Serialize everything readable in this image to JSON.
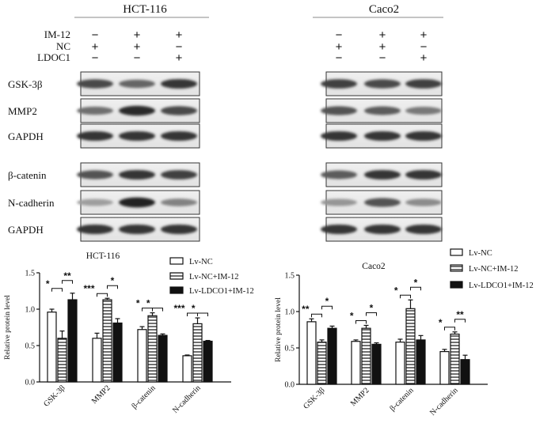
{
  "blot": {
    "panels": [
      {
        "title": "HCT-116",
        "rows": [
          {
            "label": "IM-12",
            "signs": [
              "−",
              "+",
              "+"
            ]
          },
          {
            "label": "NC",
            "signs": [
              "+",
              "+",
              "−"
            ]
          },
          {
            "label": "LDOC1",
            "signs": [
              "−",
              "−",
              "+"
            ]
          }
        ]
      },
      {
        "title": "Caco2",
        "rows": [
          {
            "label": "",
            "signs": [
              "−",
              "+",
              "+"
            ]
          },
          {
            "label": "",
            "signs": [
              "+",
              "+",
              "−"
            ]
          },
          {
            "label": "",
            "signs": [
              "−",
              "−",
              "+"
            ]
          }
        ]
      }
    ],
    "bands": [
      {
        "label": "GSK-3β",
        "hct": [
          0.75,
          0.6,
          0.85
        ],
        "caco": [
          0.8,
          0.75,
          0.8
        ]
      },
      {
        "label": "MMP2",
        "hct": [
          0.55,
          0.9,
          0.75
        ],
        "caco": [
          0.7,
          0.65,
          0.5
        ]
      },
      {
        "label": "GAPDH",
        "hct": [
          0.85,
          0.85,
          0.85
        ],
        "caco": [
          0.85,
          0.85,
          0.85
        ]
      },
      {
        "label": "β-catenin",
        "hct": [
          0.7,
          0.85,
          0.8
        ],
        "caco": [
          0.65,
          0.85,
          0.85
        ]
      },
      {
        "label": "N-cadherin",
        "hct": [
          0.3,
          0.95,
          0.45
        ],
        "caco": [
          0.35,
          0.7,
          0.4
        ]
      },
      {
        "label": "GAPDH",
        "hct": [
          0.85,
          0.85,
          0.85
        ],
        "caco": [
          0.85,
          0.85,
          0.85
        ]
      }
    ]
  },
  "legend": [
    "Lv-NC",
    "Lv-NC+IM-12",
    "Lv-LDCO1+IM-12"
  ],
  "chart_data": [
    {
      "type": "bar",
      "title": "HCT-116",
      "ylabel": "Relative protein level",
      "ylim": [
        0,
        1.5
      ],
      "yticks": [
        "0.0",
        "0.5",
        "1.0",
        "1.5"
      ],
      "categories": [
        "GSK-3β",
        "MMP2",
        "β-catenin",
        "N-cadherin"
      ],
      "series": [
        {
          "name": "Lv-NC",
          "values": [
            0.96,
            0.6,
            0.72,
            0.36
          ],
          "errors": [
            0.04,
            0.07,
            0.04,
            0.01
          ]
        },
        {
          "name": "Lv-NC+IM-12",
          "values": [
            0.6,
            1.13,
            0.91,
            0.8
          ],
          "errors": [
            0.1,
            0.02,
            0.04,
            0.08
          ]
        },
        {
          "name": "Lv-LDCO1+IM-12",
          "values": [
            1.13,
            0.81,
            0.64,
            0.56
          ],
          "errors": [
            0.09,
            0.06,
            0.02,
            0.01
          ]
        }
      ],
      "significance": [
        {
          "cat": 0,
          "from": 0,
          "to": 1,
          "label": "*",
          "level": 1
        },
        {
          "cat": 0,
          "from": 1,
          "to": 2,
          "label": "**",
          "level": 2
        },
        {
          "cat": 1,
          "from": 0,
          "to": 1,
          "label": "***",
          "level": 1
        },
        {
          "cat": 1,
          "from": 1,
          "to": 2,
          "label": "*",
          "level": 2
        },
        {
          "cat": 2,
          "from": 0,
          "to": 1,
          "label": "*",
          "level": 1
        },
        {
          "cat": 2,
          "from": 1,
          "to": 2,
          "label": "*",
          "level": 1
        },
        {
          "cat": 3,
          "from": 0,
          "to": 1,
          "label": "***",
          "level": 1
        },
        {
          "cat": 3,
          "from": 1,
          "to": 2,
          "label": "*",
          "level": 1
        }
      ]
    },
    {
      "type": "bar",
      "title": "Caco2",
      "ylabel": "Relative protein level",
      "ylim": [
        0,
        1.5
      ],
      "yticks": [
        "0.0",
        "0.5",
        "1.0",
        "1.5"
      ],
      "categories": [
        "GSK-3β",
        "MMP2",
        "β-catenin",
        "N-cadherin"
      ],
      "series": [
        {
          "name": "Lv-NC",
          "values": [
            0.86,
            0.59,
            0.58,
            0.45
          ],
          "errors": [
            0.04,
            0.02,
            0.04,
            0.03
          ]
        },
        {
          "name": "Lv-NC+IM-12",
          "values": [
            0.58,
            0.77,
            1.04,
            0.69
          ],
          "errors": [
            0.03,
            0.04,
            0.12,
            0.03
          ]
        },
        {
          "name": "Lv-LDCO1+IM-12",
          "values": [
            0.77,
            0.55,
            0.61,
            0.34
          ],
          "errors": [
            0.03,
            0.02,
            0.06,
            0.06
          ]
        }
      ],
      "significance": [
        {
          "cat": 0,
          "from": 0,
          "to": 1,
          "label": "**",
          "level": 1
        },
        {
          "cat": 0,
          "from": 1,
          "to": 2,
          "label": "*",
          "level": 2
        },
        {
          "cat": 1,
          "from": 0,
          "to": 1,
          "label": "*",
          "level": 1
        },
        {
          "cat": 1,
          "from": 1,
          "to": 2,
          "label": "*",
          "level": 2
        },
        {
          "cat": 2,
          "from": 0,
          "to": 1,
          "label": "*",
          "level": 1
        },
        {
          "cat": 2,
          "from": 1,
          "to": 2,
          "label": "*",
          "level": 2
        },
        {
          "cat": 3,
          "from": 0,
          "to": 1,
          "label": "*",
          "level": 1
        },
        {
          "cat": 3,
          "from": 1,
          "to": 2,
          "label": "**",
          "level": 2
        }
      ]
    }
  ]
}
